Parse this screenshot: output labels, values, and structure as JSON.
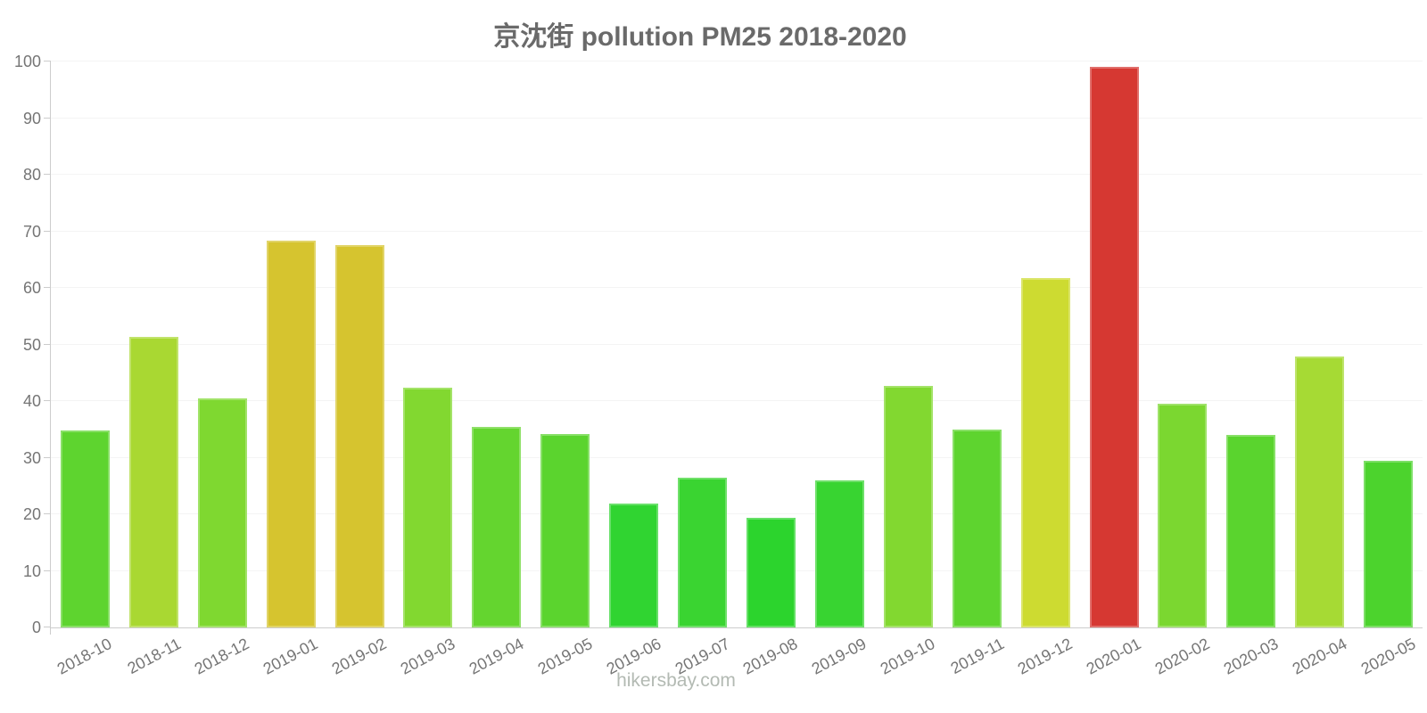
{
  "chart": {
    "title": "京沈街 pollution PM25 2018-2020",
    "footer_text": "hikersbay.com",
    "y_ticks": [
      0,
      10,
      20,
      30,
      40,
      50,
      60,
      70,
      80,
      90,
      100
    ],
    "colors": {
      "title": "#6a6a6a",
      "axis": "#cccccc",
      "grid": "#f4f4f4",
      "tick_label": "#757575",
      "footer": "#b3bab3"
    }
  },
  "chart_data": {
    "type": "bar",
    "title": "京沈街 pollution PM25 2018-2020",
    "xlabel": "",
    "ylabel": "",
    "ylim": [
      0,
      100
    ],
    "grid": "horizontal",
    "legend": "none",
    "categories": [
      "2018-10",
      "2018-11",
      "2018-12",
      "2019-01",
      "2019-02",
      "2019-03",
      "2019-04",
      "2019-05",
      "2019-06",
      "2019-07",
      "2019-08",
      "2019-09",
      "2019-10",
      "2019-11",
      "2019-12",
      "2020-01",
      "2020-02",
      "2020-03",
      "2020-04",
      "2020-05"
    ],
    "values": [
      34.8,
      51.4,
      40.4,
      68.4,
      67.6,
      42.3,
      35.5,
      34.1,
      21.9,
      26.5,
      19.3,
      26.0,
      42.7,
      34.9,
      61.8,
      99.0,
      39.6,
      34.0,
      47.8,
      29.5
    ],
    "colors": [
      "#5ED42F",
      "#A9D832",
      "#7FD830",
      "#D6C42F",
      "#D6C42F",
      "#82D830",
      "#64D52F",
      "#5BD42E",
      "#30D431",
      "#3AD431",
      "#2CD42D",
      "#38D431",
      "#82D830",
      "#5ED42F",
      "#CDDB31",
      "#D63832",
      "#7BD730",
      "#5AD42E",
      "#A6DA34",
      "#4CD32D"
    ]
  }
}
